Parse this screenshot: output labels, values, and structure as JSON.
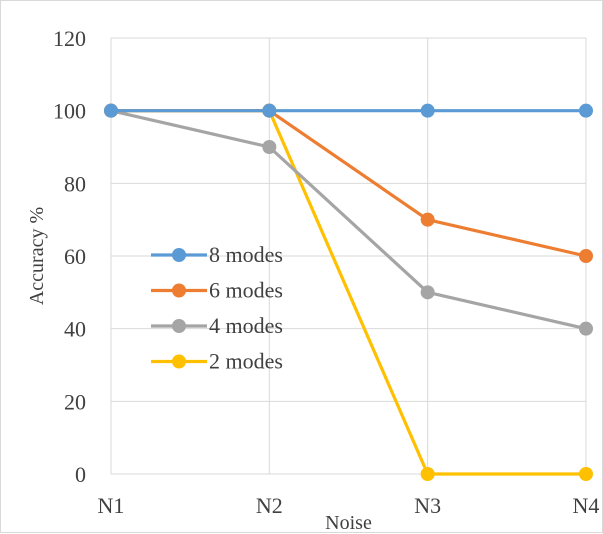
{
  "chart_data": {
    "type": "line",
    "title": "",
    "xlabel": "Noise",
    "ylabel": "Accuracy %",
    "categories": [
      "N1",
      "N2",
      "N3",
      "N4"
    ],
    "ylim": [
      0,
      120
    ],
    "yticks": [
      0,
      20,
      40,
      60,
      80,
      100,
      120
    ],
    "grid": true,
    "legend_position": "left-middle",
    "series": [
      {
        "name": "8 modes",
        "color": "#5B9BD5",
        "values": [
          100,
          100,
          100,
          100
        ]
      },
      {
        "name": "6 modes",
        "color": "#ED7D31",
        "values": [
          100,
          100,
          70,
          60
        ]
      },
      {
        "name": "4 modes",
        "color": "#A5A5A5",
        "values": [
          100,
          90,
          50,
          40
        ]
      },
      {
        "name": "2 modes",
        "color": "#FFC000",
        "values": [
          100,
          100,
          0,
          0
        ]
      }
    ]
  }
}
